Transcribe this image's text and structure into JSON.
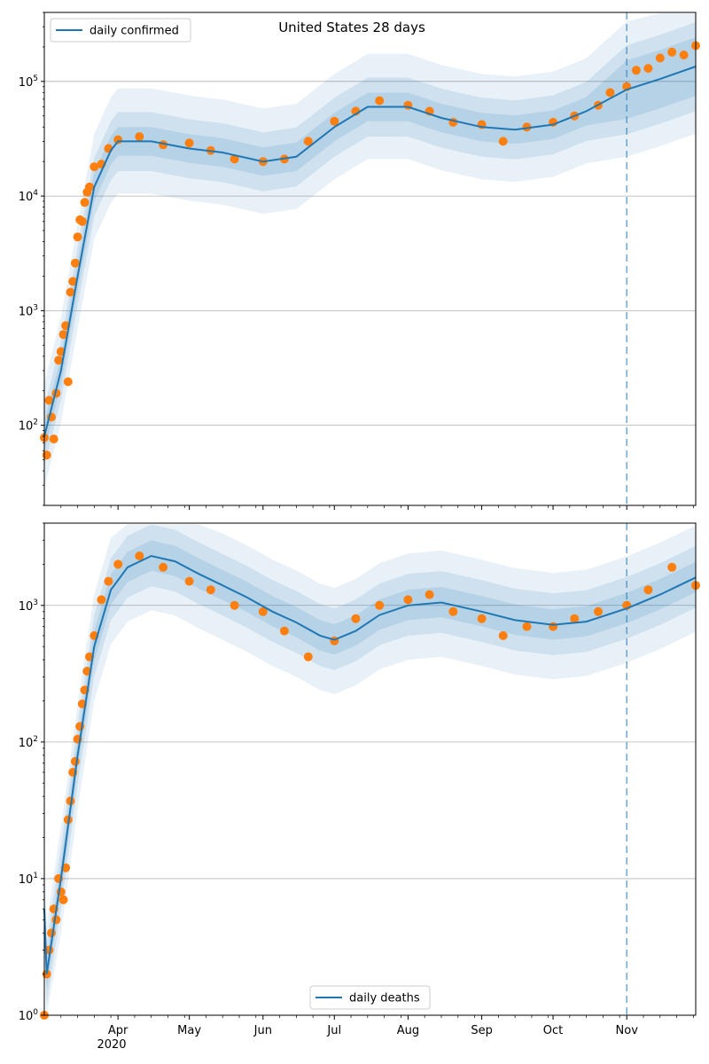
{
  "colors": {
    "model_line": "#1f77b4",
    "observations": "#ff7f0e",
    "band": "#1f77b4",
    "grid": "#b0b0b0",
    "forecast_line": "#1f77b4"
  },
  "x_axis": {
    "month_ticks": [
      "Apr",
      "May",
      "Jun",
      "Jul",
      "Aug",
      "Sep",
      "Oct",
      "Nov"
    ],
    "year_label": "2020",
    "start": "2020-03-01",
    "end": "2020-11-30"
  },
  "chart_data": [
    {
      "type": "line",
      "title": "United States 28 days",
      "legend": {
        "label": "daily confirmed",
        "position": "top-left"
      },
      "yscale": "log",
      "ylim": [
        20,
        400000
      ],
      "ytick_labels": [
        "10^2",
        "10^3",
        "10^4",
        "10^5"
      ],
      "grid": "y-major",
      "forecast_start": "2020-11-01",
      "series": [
        {
          "name": "daily confirmed",
          "kind": "model median with uncertainty bands",
          "points": [
            [
              "2020-03-01",
              80
            ],
            [
              "2020-03-08",
              300
            ],
            [
              "2020-03-15",
              2000
            ],
            [
              "2020-03-22",
              12000
            ],
            [
              "2020-03-29",
              25000
            ],
            [
              "2020-04-01",
              30000
            ],
            [
              "2020-04-15",
              30000
            ],
            [
              "2020-05-01",
              26000
            ],
            [
              "2020-05-15",
              24000
            ],
            [
              "2020-06-01",
              20000
            ],
            [
              "2020-06-15",
              22000
            ],
            [
              "2020-07-01",
              40000
            ],
            [
              "2020-07-15",
              60000
            ],
            [
              "2020-08-01",
              60000
            ],
            [
              "2020-08-15",
              48000
            ],
            [
              "2020-09-01",
              40000
            ],
            [
              "2020-09-15",
              38000
            ],
            [
              "2020-10-01",
              42000
            ],
            [
              "2020-10-15",
              55000
            ],
            [
              "2020-11-01",
              85000
            ],
            [
              "2020-11-15",
              105000
            ],
            [
              "2020-11-30",
              135000
            ]
          ]
        },
        {
          "name": "observed",
          "kind": "scatter",
          "points": [
            [
              "2020-03-01",
              78
            ],
            [
              "2020-03-02",
              55
            ],
            [
              "2020-03-03",
              165
            ],
            [
              "2020-03-04",
              118
            ],
            [
              "2020-03-05",
              76
            ],
            [
              "2020-03-06",
              190
            ],
            [
              "2020-03-07",
              370
            ],
            [
              "2020-03-08",
              440
            ],
            [
              "2020-03-09",
              620
            ],
            [
              "2020-03-10",
              740
            ],
            [
              "2020-03-11",
              240
            ],
            [
              "2020-03-12",
              1450
            ],
            [
              "2020-03-13",
              1800
            ],
            [
              "2020-03-14",
              2600
            ],
            [
              "2020-03-15",
              4400
            ],
            [
              "2020-03-16",
              6200
            ],
            [
              "2020-03-17",
              6000
            ],
            [
              "2020-03-18",
              8800
            ],
            [
              "2020-03-19",
              10800
            ],
            [
              "2020-03-20",
              12000
            ],
            [
              "2020-03-22",
              18000
            ],
            [
              "2020-03-25",
              19000
            ],
            [
              "2020-03-28",
              26000
            ],
            [
              "2020-04-01",
              31000
            ],
            [
              "2020-04-10",
              33000
            ],
            [
              "2020-04-20",
              28000
            ],
            [
              "2020-05-01",
              29000
            ],
            [
              "2020-05-10",
              25000
            ],
            [
              "2020-05-20",
              21000
            ],
            [
              "2020-06-01",
              20000
            ],
            [
              "2020-06-10",
              21000
            ],
            [
              "2020-06-20",
              30000
            ],
            [
              "2020-07-01",
              45000
            ],
            [
              "2020-07-10",
              55000
            ],
            [
              "2020-07-20",
              68000
            ],
            [
              "2020-08-01",
              62000
            ],
            [
              "2020-08-10",
              55000
            ],
            [
              "2020-08-20",
              44000
            ],
            [
              "2020-09-01",
              42000
            ],
            [
              "2020-09-10",
              30000
            ],
            [
              "2020-09-20",
              40000
            ],
            [
              "2020-10-01",
              44000
            ],
            [
              "2020-10-10",
              50000
            ],
            [
              "2020-10-20",
              62000
            ],
            [
              "2020-10-25",
              80000
            ],
            [
              "2020-11-01",
              90000
            ],
            [
              "2020-11-05",
              125000
            ],
            [
              "2020-11-10",
              130000
            ],
            [
              "2020-11-15",
              160000
            ],
            [
              "2020-11-20",
              180000
            ],
            [
              "2020-11-25",
              170000
            ],
            [
              "2020-11-30",
              205000
            ]
          ]
        }
      ]
    },
    {
      "type": "line",
      "title": "",
      "legend": {
        "label": "daily deaths",
        "position": "bottom-center"
      },
      "yscale": "log",
      "ylim": [
        1,
        4000
      ],
      "ytick_labels": [
        "10^0",
        "10^1",
        "10^2",
        "10^3"
      ],
      "grid": "y-major",
      "forecast_start": "2020-11-01",
      "series": [
        {
          "name": "daily deaths",
          "kind": "model median with uncertainty bands",
          "points": [
            [
              "2020-03-01",
              6
            ],
            [
              "2020-03-02",
              2
            ],
            [
              "2020-03-08",
              10
            ],
            [
              "2020-03-15",
              80
            ],
            [
              "2020-03-22",
              500
            ],
            [
              "2020-03-29",
              1300
            ],
            [
              "2020-04-05",
              1900
            ],
            [
              "2020-04-15",
              2300
            ],
            [
              "2020-04-25",
              2100
            ],
            [
              "2020-05-05",
              1700
            ],
            [
              "2020-05-15",
              1400
            ],
            [
              "2020-05-25",
              1150
            ],
            [
              "2020-06-05",
              900
            ],
            [
              "2020-06-15",
              750
            ],
            [
              "2020-06-25",
              600
            ],
            [
              "2020-07-01",
              560
            ],
            [
              "2020-07-10",
              650
            ],
            [
              "2020-07-20",
              850
            ],
            [
              "2020-08-01",
              1000
            ],
            [
              "2020-08-15",
              1050
            ],
            [
              "2020-09-01",
              900
            ],
            [
              "2020-09-15",
              780
            ],
            [
              "2020-10-01",
              720
            ],
            [
              "2020-10-15",
              760
            ],
            [
              "2020-11-01",
              950
            ],
            [
              "2020-11-15",
              1200
            ],
            [
              "2020-11-30",
              1600
            ]
          ]
        },
        {
          "name": "observed",
          "kind": "scatter",
          "points": [
            [
              "2020-03-01",
              1
            ],
            [
              "2020-03-02",
              2
            ],
            [
              "2020-03-03",
              3
            ],
            [
              "2020-03-04",
              4
            ],
            [
              "2020-03-05",
              6
            ],
            [
              "2020-03-06",
              5
            ],
            [
              "2020-03-07",
              10
            ],
            [
              "2020-03-08",
              8
            ],
            [
              "2020-03-09",
              7
            ],
            [
              "2020-03-10",
              12
            ],
            [
              "2020-03-11",
              27
            ],
            [
              "2020-03-12",
              37
            ],
            [
              "2020-03-13",
              60
            ],
            [
              "2020-03-14",
              72
            ],
            [
              "2020-03-15",
              105
            ],
            [
              "2020-03-16",
              130
            ],
            [
              "2020-03-17",
              190
            ],
            [
              "2020-03-18",
              240
            ],
            [
              "2020-03-19",
              330
            ],
            [
              "2020-03-20",
              420
            ],
            [
              "2020-03-22",
              600
            ],
            [
              "2020-03-25",
              1100
            ],
            [
              "2020-03-28",
              1500
            ],
            [
              "2020-04-01",
              2000
            ],
            [
              "2020-04-10",
              2300
            ],
            [
              "2020-04-20",
              1900
            ],
            [
              "2020-05-01",
              1500
            ],
            [
              "2020-05-10",
              1300
            ],
            [
              "2020-05-20",
              1000
            ],
            [
              "2020-06-01",
              900
            ],
            [
              "2020-06-10",
              650
            ],
            [
              "2020-06-20",
              420
            ],
            [
              "2020-07-01",
              550
            ],
            [
              "2020-07-10",
              800
            ],
            [
              "2020-07-20",
              1000
            ],
            [
              "2020-08-01",
              1100
            ],
            [
              "2020-08-10",
              1200
            ],
            [
              "2020-08-20",
              900
            ],
            [
              "2020-09-01",
              800
            ],
            [
              "2020-09-10",
              600
            ],
            [
              "2020-09-20",
              700
            ],
            [
              "2020-10-01",
              700
            ],
            [
              "2020-10-10",
              800
            ],
            [
              "2020-10-20",
              900
            ],
            [
              "2020-11-01",
              1000
            ],
            [
              "2020-11-10",
              1300
            ],
            [
              "2020-11-20",
              1900
            ],
            [
              "2020-11-30",
              1400
            ]
          ]
        }
      ]
    }
  ]
}
